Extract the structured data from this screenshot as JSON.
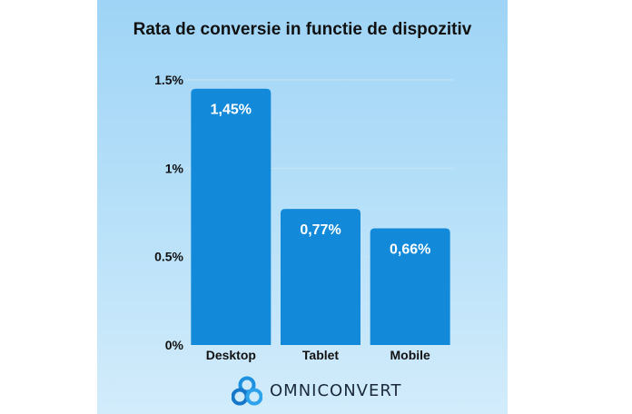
{
  "brand": {
    "name": "OMNICONVERT",
    "logo_icon": "three-circles-logo-icon"
  },
  "colors": {
    "bar": "#138ad9",
    "label_on_bar": "#ffffff",
    "text": "#111111"
  },
  "chart_data": {
    "type": "bar",
    "title": "Rata de conversie in functie de dispozitiv",
    "categories": [
      "Desktop",
      "Tablet",
      "Mobile"
    ],
    "values": [
      1.45,
      0.77,
      0.66
    ],
    "data_labels": [
      "1,45%",
      "0,77%",
      "0,66%"
    ],
    "ylim": [
      0,
      1.5
    ],
    "yticks": [
      0,
      0.5,
      1,
      1.5
    ],
    "ytick_labels": [
      "0%",
      "0.5%",
      "1%",
      "1.5%"
    ],
    "xlabel": "",
    "ylabel": "",
    "grid": true,
    "legend": "none"
  }
}
